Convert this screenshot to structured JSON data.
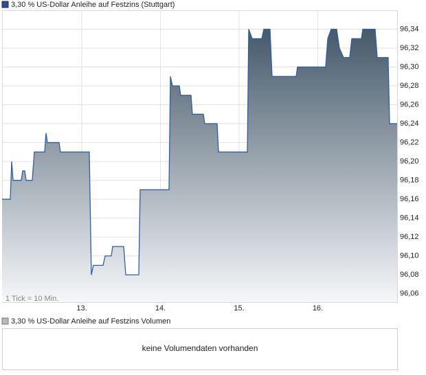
{
  "chart_data": {
    "type": "area",
    "annotation": "1 Tick = 10 Min.",
    "x": [
      11.987,
      12.092,
      12.109,
      12.127,
      12.231,
      12.249,
      12.275,
      12.293,
      12.371,
      12.397,
      12.528,
      12.546,
      12.563,
      12.712,
      12.729,
      13.096,
      13.122,
      13.148,
      13.271,
      13.297,
      13.376,
      13.393,
      13.533,
      13.559,
      13.725,
      13.742,
      14.109,
      14.127,
      14.153,
      14.24,
      14.258,
      14.389,
      14.406,
      14.546,
      14.563,
      14.721,
      14.738,
      15.105,
      15.122,
      15.166,
      15.288,
      15.314,
      15.393,
      15.419,
      15.725,
      15.742,
      16.1,
      16.127,
      16.17,
      16.24,
      16.275,
      16.328,
      16.406,
      16.432,
      16.555,
      16.572,
      16.729,
      16.756,
      16.895,
      16.913,
      17.009
    ],
    "series": [
      {
        "name": "3,30 % US-Dollar Anleihe auf Festzins (Stuttgart)",
        "color": "#2b5fad",
        "values": [
          96.16,
          96.16,
          96.2,
          96.18,
          96.18,
          96.19,
          96.19,
          96.18,
          96.18,
          96.21,
          96.21,
          96.23,
          96.22,
          96.22,
          96.21,
          96.21,
          96.08,
          96.09,
          96.09,
          96.1,
          96.1,
          96.11,
          96.11,
          96.08,
          96.08,
          96.17,
          96.17,
          96.29,
          96.28,
          96.28,
          96.27,
          96.27,
          96.25,
          96.25,
          96.24,
          96.24,
          96.21,
          96.21,
          96.34,
          96.33,
          96.33,
          96.34,
          96.34,
          96.29,
          96.29,
          96.3,
          96.3,
          96.33,
          96.34,
          96.34,
          96.32,
          96.31,
          96.31,
          96.33,
          96.33,
          96.34,
          96.34,
          96.31,
          96.31,
          96.24,
          96.24
        ]
      }
    ],
    "xlim": [
      11.987,
      17.009
    ],
    "xticks": [
      {
        "value": 13,
        "label": "13."
      },
      {
        "value": 14,
        "label": "14."
      },
      {
        "value": 15,
        "label": "15."
      },
      {
        "value": 16,
        "label": "16."
      }
    ],
    "ylim": [
      96.051,
      96.36
    ],
    "yticks": [
      {
        "value": 96.06,
        "label": "96,06"
      },
      {
        "value": 96.08,
        "label": "96,08"
      },
      {
        "value": 96.1,
        "label": "96,10"
      },
      {
        "value": 96.12,
        "label": "96,12"
      },
      {
        "value": 96.14,
        "label": "96,14"
      },
      {
        "value": 96.16,
        "label": "96,16"
      },
      {
        "value": 96.18,
        "label": "96,18"
      },
      {
        "value": 96.2,
        "label": "96,20"
      },
      {
        "value": 96.22,
        "label": "96,22"
      },
      {
        "value": 96.24,
        "label": "96,24"
      },
      {
        "value": 96.26,
        "label": "96,26"
      },
      {
        "value": 96.28,
        "label": "96,28"
      },
      {
        "value": 96.3,
        "label": "96,30"
      },
      {
        "value": 96.32,
        "label": "96,32"
      },
      {
        "value": 96.34,
        "label": "96,34"
      }
    ],
    "grid": true
  },
  "volume": {
    "name": "3,30 % US-Dollar Anleihe auf Festzins Volumen",
    "color": "#b8b8b8",
    "message": "keine Volumendaten vorhanden"
  }
}
